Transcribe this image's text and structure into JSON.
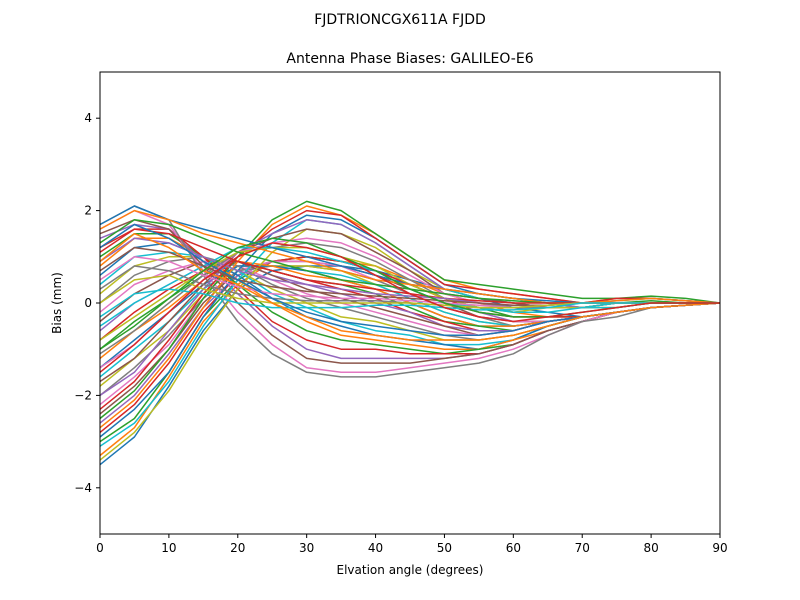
{
  "chart_data": {
    "type": "line",
    "suptitle": "FJDTRIONCGX611A FJDD",
    "title": "Antenna Phase Biases: GALILEO-E6",
    "xlabel": "Elvation angle (degrees)",
    "ylabel": "Bias (mm)",
    "xlim": [
      0,
      90
    ],
    "ylim": [
      -5,
      5
    ],
    "xticks": [
      0,
      10,
      20,
      30,
      40,
      50,
      60,
      70,
      80,
      90
    ],
    "yticks": [
      -4,
      -2,
      0,
      2,
      4
    ],
    "ytick_labels": [
      "−4",
      "−2",
      "0",
      "2",
      "4"
    ],
    "grid": false,
    "legend": "none",
    "x": [
      0,
      5,
      10,
      15,
      20,
      25,
      30,
      35,
      40,
      45,
      50,
      55,
      60,
      65,
      70,
      75,
      80,
      85,
      90
    ],
    "colors": [
      "#1f77b4",
      "#ff7f0e",
      "#2ca02c",
      "#d62728",
      "#9467bd",
      "#8c564b",
      "#e377c2",
      "#7f7f7f",
      "#bcbd22",
      "#17becf"
    ],
    "series": [
      {
        "values": [
          -3.5,
          -2.9,
          -1.8,
          -0.6,
          0.3,
          0.7,
          0.8,
          0.8,
          0.7,
          0.5,
          0.3,
          0.1,
          -0.1,
          -0.2,
          -0.3,
          -0.2,
          -0.1,
          -0.05,
          0
        ]
      },
      {
        "values": [
          -3.3,
          -2.7,
          -1.6,
          -0.4,
          0.4,
          0.9,
          1.0,
          0.9,
          0.8,
          0.5,
          0.2,
          0.0,
          -0.2,
          -0.3,
          -0.3,
          -0.2,
          -0.1,
          -0.05,
          0
        ]
      },
      {
        "values": [
          -3.0,
          -2.5,
          -1.5,
          -0.3,
          0.5,
          0.9,
          1.0,
          0.9,
          0.7,
          0.4,
          0.1,
          -0.1,
          -0.3,
          -0.3,
          -0.3,
          -0.2,
          -0.1,
          -0.05,
          0
        ]
      },
      {
        "values": [
          -2.8,
          -2.2,
          -1.3,
          -0.2,
          0.6,
          0.9,
          1.0,
          0.9,
          0.7,
          0.4,
          0.1,
          -0.2,
          -0.3,
          -0.3,
          -0.3,
          -0.2,
          -0.1,
          -0.05,
          0
        ]
      },
      {
        "values": [
          -2.6,
          -2.0,
          -1.1,
          -0.1,
          0.6,
          0.9,
          0.9,
          0.8,
          0.6,
          0.3,
          0.0,
          -0.2,
          -0.4,
          -0.4,
          -0.3,
          -0.2,
          -0.1,
          -0.05,
          0
        ]
      },
      {
        "values": [
          -2.4,
          -1.8,
          -1.0,
          0.0,
          0.7,
          0.9,
          0.9,
          0.8,
          0.6,
          0.3,
          0.0,
          -0.3,
          -0.4,
          -0.4,
          -0.3,
          -0.2,
          -0.1,
          -0.05,
          0
        ]
      },
      {
        "values": [
          -2.2,
          -1.6,
          -0.9,
          0.1,
          0.7,
          0.9,
          0.9,
          0.8,
          0.5,
          0.2,
          -0.1,
          -0.3,
          -0.4,
          -0.4,
          -0.3,
          -0.2,
          -0.1,
          -0.05,
          0
        ]
      },
      {
        "values": [
          -2.0,
          -1.4,
          -0.7,
          0.1,
          0.7,
          0.8,
          0.8,
          0.7,
          0.5,
          0.2,
          -0.1,
          -0.3,
          -0.5,
          -0.4,
          -0.3,
          -0.2,
          -0.1,
          -0.05,
          0
        ]
      },
      {
        "values": [
          -1.8,
          -1.2,
          -0.6,
          0.2,
          0.8,
          0.8,
          0.8,
          0.7,
          0.4,
          0.1,
          -0.2,
          -0.4,
          -0.5,
          -0.4,
          -0.3,
          -0.2,
          -0.1,
          -0.05,
          0
        ]
      },
      {
        "values": [
          -1.6,
          -1.0,
          -0.4,
          0.3,
          0.8,
          0.8,
          0.7,
          0.6,
          0.4,
          0.1,
          -0.2,
          -0.4,
          -0.5,
          -0.4,
          -0.3,
          -0.2,
          -0.1,
          -0.05,
          0
        ]
      },
      {
        "values": [
          -1.4,
          -0.8,
          -0.2,
          0.4,
          0.8,
          0.8,
          0.7,
          0.5,
          0.3,
          0.0,
          -0.3,
          -0.5,
          -0.5,
          -0.4,
          -0.3,
          -0.2,
          -0.1,
          -0.05,
          0
        ]
      },
      {
        "values": [
          -1.2,
          -0.6,
          -0.1,
          0.5,
          0.9,
          0.8,
          0.6,
          0.5,
          0.3,
          0.0,
          -0.3,
          -0.5,
          -0.5,
          -0.4,
          -0.3,
          -0.2,
          -0.1,
          -0.05,
          0
        ]
      },
      {
        "values": [
          -1.0,
          -0.4,
          0.1,
          0.6,
          0.9,
          0.7,
          0.5,
          0.4,
          0.2,
          -0.1,
          -0.4,
          -0.5,
          -0.6,
          -0.4,
          -0.3,
          -0.2,
          -0.1,
          -0.05,
          0
        ]
      },
      {
        "values": [
          -0.8,
          -0.2,
          0.3,
          0.7,
          0.9,
          0.7,
          0.5,
          0.3,
          0.1,
          -0.2,
          -0.4,
          -0.6,
          -0.6,
          -0.4,
          -0.3,
          -0.2,
          -0.1,
          -0.05,
          0
        ]
      },
      {
        "values": [
          -0.6,
          0.0,
          0.4,
          0.8,
          0.9,
          0.6,
          0.4,
          0.2,
          0.0,
          -0.2,
          -0.5,
          -0.6,
          -0.6,
          -0.4,
          -0.3,
          -0.2,
          -0.1,
          -0.05,
          0
        ]
      },
      {
        "values": [
          -0.4,
          0.2,
          0.6,
          0.9,
          0.9,
          0.6,
          0.3,
          0.1,
          -0.1,
          -0.3,
          -0.5,
          -0.7,
          -0.6,
          -0.4,
          -0.3,
          -0.2,
          -0.1,
          -0.05,
          0
        ]
      },
      {
        "values": [
          -0.2,
          0.4,
          0.7,
          0.9,
          0.8,
          0.5,
          0.2,
          0.0,
          -0.2,
          -0.4,
          -0.6,
          -0.7,
          -0.6,
          -0.4,
          -0.3,
          -0.2,
          -0.1,
          -0.05,
          0
        ]
      },
      {
        "values": [
          0.0,
          0.6,
          0.9,
          1.0,
          0.8,
          0.4,
          0.1,
          -0.1,
          -0.3,
          -0.5,
          -0.7,
          -0.8,
          -0.7,
          -0.5,
          -0.3,
          -0.2,
          -0.1,
          -0.05,
          0
        ]
      },
      {
        "values": [
          0.2,
          0.8,
          1.0,
          1.0,
          0.7,
          0.3,
          0.0,
          -0.3,
          -0.4,
          -0.6,
          -0.8,
          -0.8,
          -0.7,
          -0.5,
          -0.3,
          -0.2,
          -0.1,
          -0.05,
          0
        ]
      },
      {
        "values": [
          0.4,
          1.0,
          1.1,
          1.0,
          0.7,
          0.2,
          -0.1,
          -0.4,
          -0.6,
          -0.7,
          -0.9,
          -0.9,
          -0.8,
          -0.5,
          -0.3,
          -0.2,
          -0.1,
          -0.05,
          0
        ]
      },
      {
        "values": [
          0.6,
          1.2,
          1.3,
          1.0,
          0.6,
          0.1,
          -0.3,
          -0.5,
          -0.7,
          -0.8,
          -0.9,
          -1.0,
          -0.8,
          -0.5,
          -0.3,
          -0.2,
          -0.1,
          -0.05,
          0
        ]
      },
      {
        "values": [
          0.8,
          1.4,
          1.4,
          1.0,
          0.5,
          0.0,
          -0.4,
          -0.7,
          -0.8,
          -0.9,
          -1.0,
          -1.0,
          -0.8,
          -0.6,
          -0.4,
          -0.2,
          -0.1,
          -0.05,
          0
        ]
      },
      {
        "values": [
          1.0,
          1.5,
          1.5,
          1.0,
          0.4,
          -0.2,
          -0.6,
          -0.8,
          -0.9,
          -1.0,
          -1.1,
          -1.0,
          -0.9,
          -0.6,
          -0.4,
          -0.2,
          -0.1,
          -0.05,
          0
        ]
      },
      {
        "values": [
          1.2,
          1.6,
          1.6,
          1.0,
          0.3,
          -0.4,
          -0.8,
          -1.0,
          -1.0,
          -1.1,
          -1.1,
          -1.1,
          -0.9,
          -0.6,
          -0.4,
          -0.2,
          -0.1,
          -0.05,
          0
        ]
      },
      {
        "values": [
          1.4,
          1.7,
          1.6,
          0.9,
          0.2,
          -0.5,
          -1.0,
          -1.2,
          -1.2,
          -1.2,
          -1.2,
          -1.1,
          -0.9,
          -0.6,
          -0.4,
          -0.2,
          -0.1,
          -0.05,
          0
        ]
      },
      {
        "values": [
          1.5,
          1.8,
          1.6,
          0.8,
          0.0,
          -0.7,
          -1.2,
          -1.3,
          -1.3,
          -1.3,
          -1.2,
          -1.1,
          -0.9,
          -0.6,
          -0.4,
          -0.2,
          -0.1,
          -0.05,
          0
        ]
      },
      {
        "values": [
          1.6,
          2.0,
          1.7,
          0.7,
          -0.2,
          -0.9,
          -1.4,
          -1.5,
          -1.5,
          -1.4,
          -1.3,
          -1.2,
          -1.0,
          -0.7,
          -0.4,
          -0.2,
          -0.1,
          -0.05,
          0
        ]
      },
      {
        "values": [
          1.7,
          2.1,
          1.8,
          0.6,
          -0.4,
          -1.1,
          -1.5,
          -1.6,
          -1.6,
          -1.5,
          -1.4,
          -1.3,
          -1.1,
          -0.7,
          -0.4,
          -0.3,
          -0.1,
          -0.05,
          0
        ]
      },
      {
        "values": [
          -3.4,
          -2.8,
          -1.9,
          -0.7,
          0.3,
          1.1,
          1.6,
          1.5,
          1.2,
          0.7,
          0.3,
          0.1,
          0.0,
          -0.1,
          -0.1,
          -0.1,
          0.0,
          0.0,
          0
        ]
      },
      {
        "values": [
          -3.1,
          -2.6,
          -1.7,
          -0.5,
          0.5,
          1.3,
          1.8,
          1.7,
          1.3,
          0.8,
          0.3,
          0.1,
          0.0,
          -0.1,
          -0.1,
          -0.1,
          0.0,
          0.0,
          0
        ]
      },
      {
        "values": [
          -2.9,
          -2.3,
          -1.5,
          -0.3,
          0.7,
          1.5,
          1.9,
          1.8,
          1.4,
          0.9,
          0.4,
          0.2,
          0.1,
          0.0,
          -0.1,
          0.0,
          0.0,
          0.0,
          0
        ]
      },
      {
        "values": [
          -2.7,
          -2.1,
          -1.2,
          -0.1,
          0.9,
          1.7,
          2.1,
          1.9,
          1.5,
          1.0,
          0.5,
          0.3,
          0.2,
          0.1,
          0.0,
          0.1,
          0.1,
          0.05,
          0
        ]
      },
      {
        "values": [
          -2.5,
          -1.9,
          -1.0,
          0.1,
          1.0,
          1.8,
          2.2,
          2.0,
          1.5,
          1.0,
          0.5,
          0.4,
          0.3,
          0.2,
          0.1,
          0.1,
          0.15,
          0.1,
          0
        ]
      },
      {
        "values": [
          -2.3,
          -1.7,
          -0.8,
          0.2,
          1.0,
          1.6,
          2.0,
          1.9,
          1.4,
          0.9,
          0.4,
          0.3,
          0.2,
          0.1,
          0.0,
          0.1,
          0.1,
          0.05,
          0
        ]
      },
      {
        "values": [
          -2.0,
          -1.5,
          -0.6,
          0.3,
          1.1,
          1.5,
          1.8,
          1.7,
          1.3,
          0.8,
          0.3,
          0.2,
          0.1,
          0.0,
          -0.1,
          0.0,
          0.0,
          0.0,
          0
        ]
      },
      {
        "values": [
          -1.7,
          -1.2,
          -0.4,
          0.4,
          1.1,
          1.4,
          1.6,
          1.5,
          1.1,
          0.7,
          0.2,
          0.1,
          0.0,
          -0.1,
          -0.1,
          0.0,
          0.0,
          0.0,
          0
        ]
      },
      {
        "values": [
          -1.4,
          -0.9,
          -0.2,
          0.5,
          1.1,
          1.3,
          1.4,
          1.3,
          1.0,
          0.6,
          0.2,
          0.0,
          -0.1,
          -0.1,
          -0.1,
          0.0,
          0.0,
          0.0,
          0
        ]
      },
      {
        "values": [
          -1.1,
          -0.6,
          0.0,
          0.6,
          1.1,
          1.2,
          1.3,
          1.2,
          0.9,
          0.5,
          0.1,
          0.0,
          -0.1,
          -0.1,
          -0.1,
          0.0,
          0.0,
          0.0,
          0
        ]
      },
      {
        "values": [
          -0.8,
          -0.3,
          0.2,
          0.7,
          1.1,
          1.2,
          1.2,
          1.0,
          0.8,
          0.4,
          0.1,
          -0.1,
          -0.2,
          -0.1,
          -0.1,
          0.0,
          0.0,
          0.0,
          0
        ]
      },
      {
        "values": [
          -0.5,
          0.0,
          0.4,
          0.8,
          1.2,
          1.2,
          1.1,
          0.9,
          0.7,
          0.3,
          0.0,
          -0.1,
          -0.2,
          -0.2,
          -0.1,
          0.0,
          0.0,
          0.0,
          0
        ]
      },
      {
        "values": [
          1.7,
          2.1,
          1.8,
          1.6,
          1.4,
          1.2,
          1.0,
          0.8,
          0.6,
          0.4,
          0.3,
          0.2,
          0.1,
          0.05,
          0.0,
          0.05,
          0.1,
          0.05,
          0
        ]
      },
      {
        "values": [
          1.6,
          2.0,
          1.8,
          1.5,
          1.3,
          1.1,
          0.9,
          0.7,
          0.5,
          0.4,
          0.3,
          0.2,
          0.1,
          0.0,
          0.0,
          0.05,
          0.1,
          0.05,
          0
        ]
      },
      {
        "values": [
          1.3,
          1.8,
          1.7,
          1.4,
          1.1,
          0.9,
          0.7,
          0.5,
          0.4,
          0.3,
          0.2,
          0.1,
          0.05,
          0.0,
          0.0,
          0.0,
          0.05,
          0.0,
          0
        ]
      },
      {
        "values": [
          1.1,
          1.6,
          1.5,
          1.2,
          0.9,
          0.7,
          0.5,
          0.4,
          0.3,
          0.2,
          0.1,
          0.05,
          0.0,
          0.0,
          0.0,
          0.0,
          0.0,
          0.0,
          0
        ]
      },
      {
        "values": [
          0.9,
          1.4,
          1.3,
          1.0,
          0.7,
          0.5,
          0.4,
          0.3,
          0.2,
          0.15,
          0.1,
          0.0,
          -0.05,
          -0.05,
          0.0,
          0.0,
          0.0,
          0.0,
          0
        ]
      },
      {
        "values": [
          0.7,
          1.2,
          1.1,
          0.8,
          0.5,
          0.35,
          0.25,
          0.2,
          0.15,
          0.1,
          0.05,
          0.0,
          -0.05,
          -0.05,
          0.0,
          0.0,
          0.0,
          0.0,
          0
        ]
      },
      {
        "values": [
          0.5,
          1.0,
          0.9,
          0.6,
          0.35,
          0.2,
          0.15,
          0.1,
          0.1,
          0.05,
          0.0,
          -0.05,
          -0.1,
          -0.05,
          0.0,
          0.0,
          0.0,
          0.0,
          0
        ]
      },
      {
        "values": [
          0.3,
          0.8,
          0.7,
          0.4,
          0.2,
          0.1,
          0.05,
          0.05,
          0.05,
          0.0,
          -0.05,
          -0.1,
          -0.1,
          -0.05,
          0.0,
          0.0,
          0.0,
          0.0,
          0
        ]
      },
      {
        "values": [
          0.0,
          0.5,
          0.6,
          0.3,
          0.1,
          0.0,
          0.0,
          0.0,
          0.0,
          0.0,
          -0.05,
          -0.1,
          -0.1,
          -0.05,
          0.0,
          0.0,
          0.0,
          0.0,
          0
        ]
      },
      {
        "values": [
          -0.3,
          0.2,
          0.3,
          0.2,
          0.0,
          -0.1,
          -0.1,
          -0.1,
          -0.05,
          -0.05,
          -0.1,
          -0.15,
          -0.15,
          -0.1,
          0.0,
          0.0,
          0.0,
          0.0,
          0
        ]
      },
      {
        "values": [
          1.2,
          1.7,
          1.4,
          0.9,
          0.5,
          0.1,
          -0.2,
          -0.4,
          -0.5,
          -0.6,
          -0.7,
          -0.7,
          -0.6,
          -0.4,
          -0.3,
          -0.2,
          -0.1,
          -0.05,
          0
        ]
      },
      {
        "values": [
          0.9,
          1.5,
          1.2,
          0.7,
          0.4,
          0.0,
          -0.3,
          -0.6,
          -0.7,
          -0.8,
          -0.8,
          -0.8,
          -0.7,
          -0.5,
          -0.3,
          -0.2,
          -0.1,
          -0.05,
          0
        ]
      },
      {
        "values": [
          -1.0,
          -0.5,
          0.1,
          0.7,
          1.2,
          1.4,
          1.3,
          1.0,
          0.7,
          0.3,
          0.0,
          -0.2,
          -0.3,
          -0.3,
          -0.2,
          -0.1,
          0.0,
          0.0,
          0
        ]
      },
      {
        "values": [
          -1.5,
          -0.9,
          -0.2,
          0.5,
          1.0,
          1.3,
          1.2,
          1.0,
          0.6,
          0.2,
          -0.1,
          -0.3,
          -0.4,
          -0.3,
          -0.2,
          -0.1,
          0.0,
          0.0,
          0
        ]
      }
    ]
  }
}
